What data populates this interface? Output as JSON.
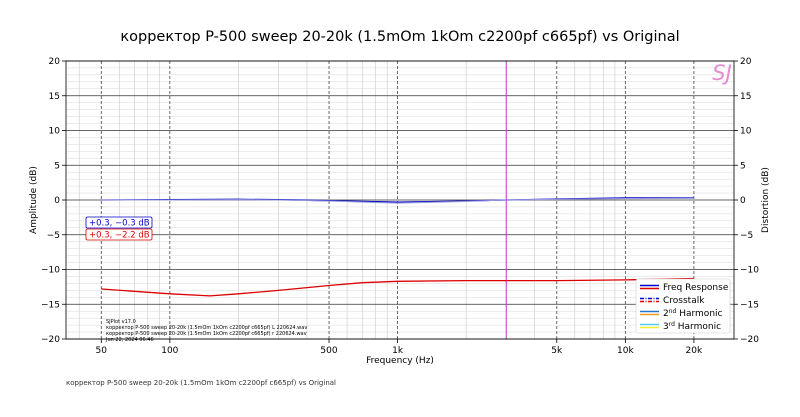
{
  "chart_data": {
    "type": "line",
    "title": "корректор P-500 sweep 20-20k (1.5mOm 1kOm c2200pf c665pf) vs Original",
    "xlabel": "Frequency (Hz)",
    "ylabel": "Amplitude (dB)",
    "y2label": "Distortion (dB)",
    "xscale": "log",
    "xlim": [
      35,
      30000
    ],
    "ylim": [
      -20,
      20
    ],
    "x_ticks": [
      50,
      100,
      500,
      1000,
      5000,
      10000,
      20000
    ],
    "x_tick_labels": [
      "50",
      "100",
      "500",
      "1k",
      "5k",
      "10k",
      "20k"
    ],
    "y_ticks": [
      20,
      15,
      10,
      5,
      0,
      -5,
      -10,
      -15,
      -20
    ],
    "y_tick_labels": [
      "20",
      "15",
      "10",
      "5",
      "0",
      "−5",
      "−10",
      "−15",
      "−20"
    ],
    "grid": true,
    "cursor_x": 3000,
    "series": [
      {
        "color": "#0000cc",
        "x": [
          50,
          100,
          200,
          300,
          500,
          700,
          1000,
          2000,
          3000,
          5000,
          10000,
          20000
        ],
        "y": [
          0.0,
          0.05,
          0.1,
          0.05,
          -0.1,
          -0.2,
          -0.3,
          -0.15,
          0.0,
          0.15,
          0.3,
          0.3
        ]
      },
      {
        "color": "#9999dd",
        "x": [
          50,
          100,
          200,
          300,
          500,
          700,
          1000,
          2000,
          3000,
          5000,
          10000,
          20000
        ],
        "y": [
          0.0,
          0.0,
          0.05,
          0.0,
          -0.15,
          -0.3,
          -0.45,
          -0.2,
          0.0,
          0.1,
          0.2,
          0.25
        ]
      },
      {
        "color": "#dd0000",
        "x": [
          50,
          100,
          150,
          200,
          300,
          500,
          700,
          1000,
          2000,
          3000,
          5000,
          10000,
          20000
        ],
        "y": [
          -12.8,
          -13.5,
          -13.8,
          -13.5,
          -13.0,
          -12.3,
          -11.9,
          -11.7,
          -11.6,
          -11.6,
          -11.6,
          -11.5,
          -11.3
        ]
      }
    ],
    "annotations": [
      {
        "text": "+0.3, −0.3 dB",
        "color": "#0000cc"
      },
      {
        "text": "+0.3, −2.2 dB",
        "color": "#dd0000"
      }
    ],
    "legend": {
      "placement": "bottom-right",
      "entries": [
        {
          "label": "Freq Response",
          "colors": [
            "#0000cc",
            "#dd0000"
          ],
          "style": "solid"
        },
        {
          "label": "Crosstalk",
          "colors": [
            "#0000cc",
            "#dd0000"
          ],
          "style": "dashdot"
        },
        {
          "label_main": "2",
          "label_sup": "nd",
          "label_rest": " Harmonic",
          "colors": [
            "#2277cc",
            "#ee9922"
          ],
          "style": "solid"
        },
        {
          "label_main": "3",
          "label_sup": "rd",
          "label_rest": " Harmonic",
          "colors": [
            "#55ccee",
            "#eeee33"
          ],
          "style": "solid"
        }
      ]
    },
    "watermark": "SJ",
    "info_lines": [
      "SJPlot v17.0",
      "корректор P-500 sweep 20-20k (1.5mOm 1kOm c2200pf c665pf) L 220624.wav",
      "корректор P-500 sweep 20-20k (1.5mOm 1kOm c2200pf c665pf) r 220624.wav",
      "Jun 22, 2024 06:46"
    ]
  },
  "footer": "корректор P-500 sweep 20-20k (1.5mOm 1kOm c2200pf c665pf) vs Original"
}
